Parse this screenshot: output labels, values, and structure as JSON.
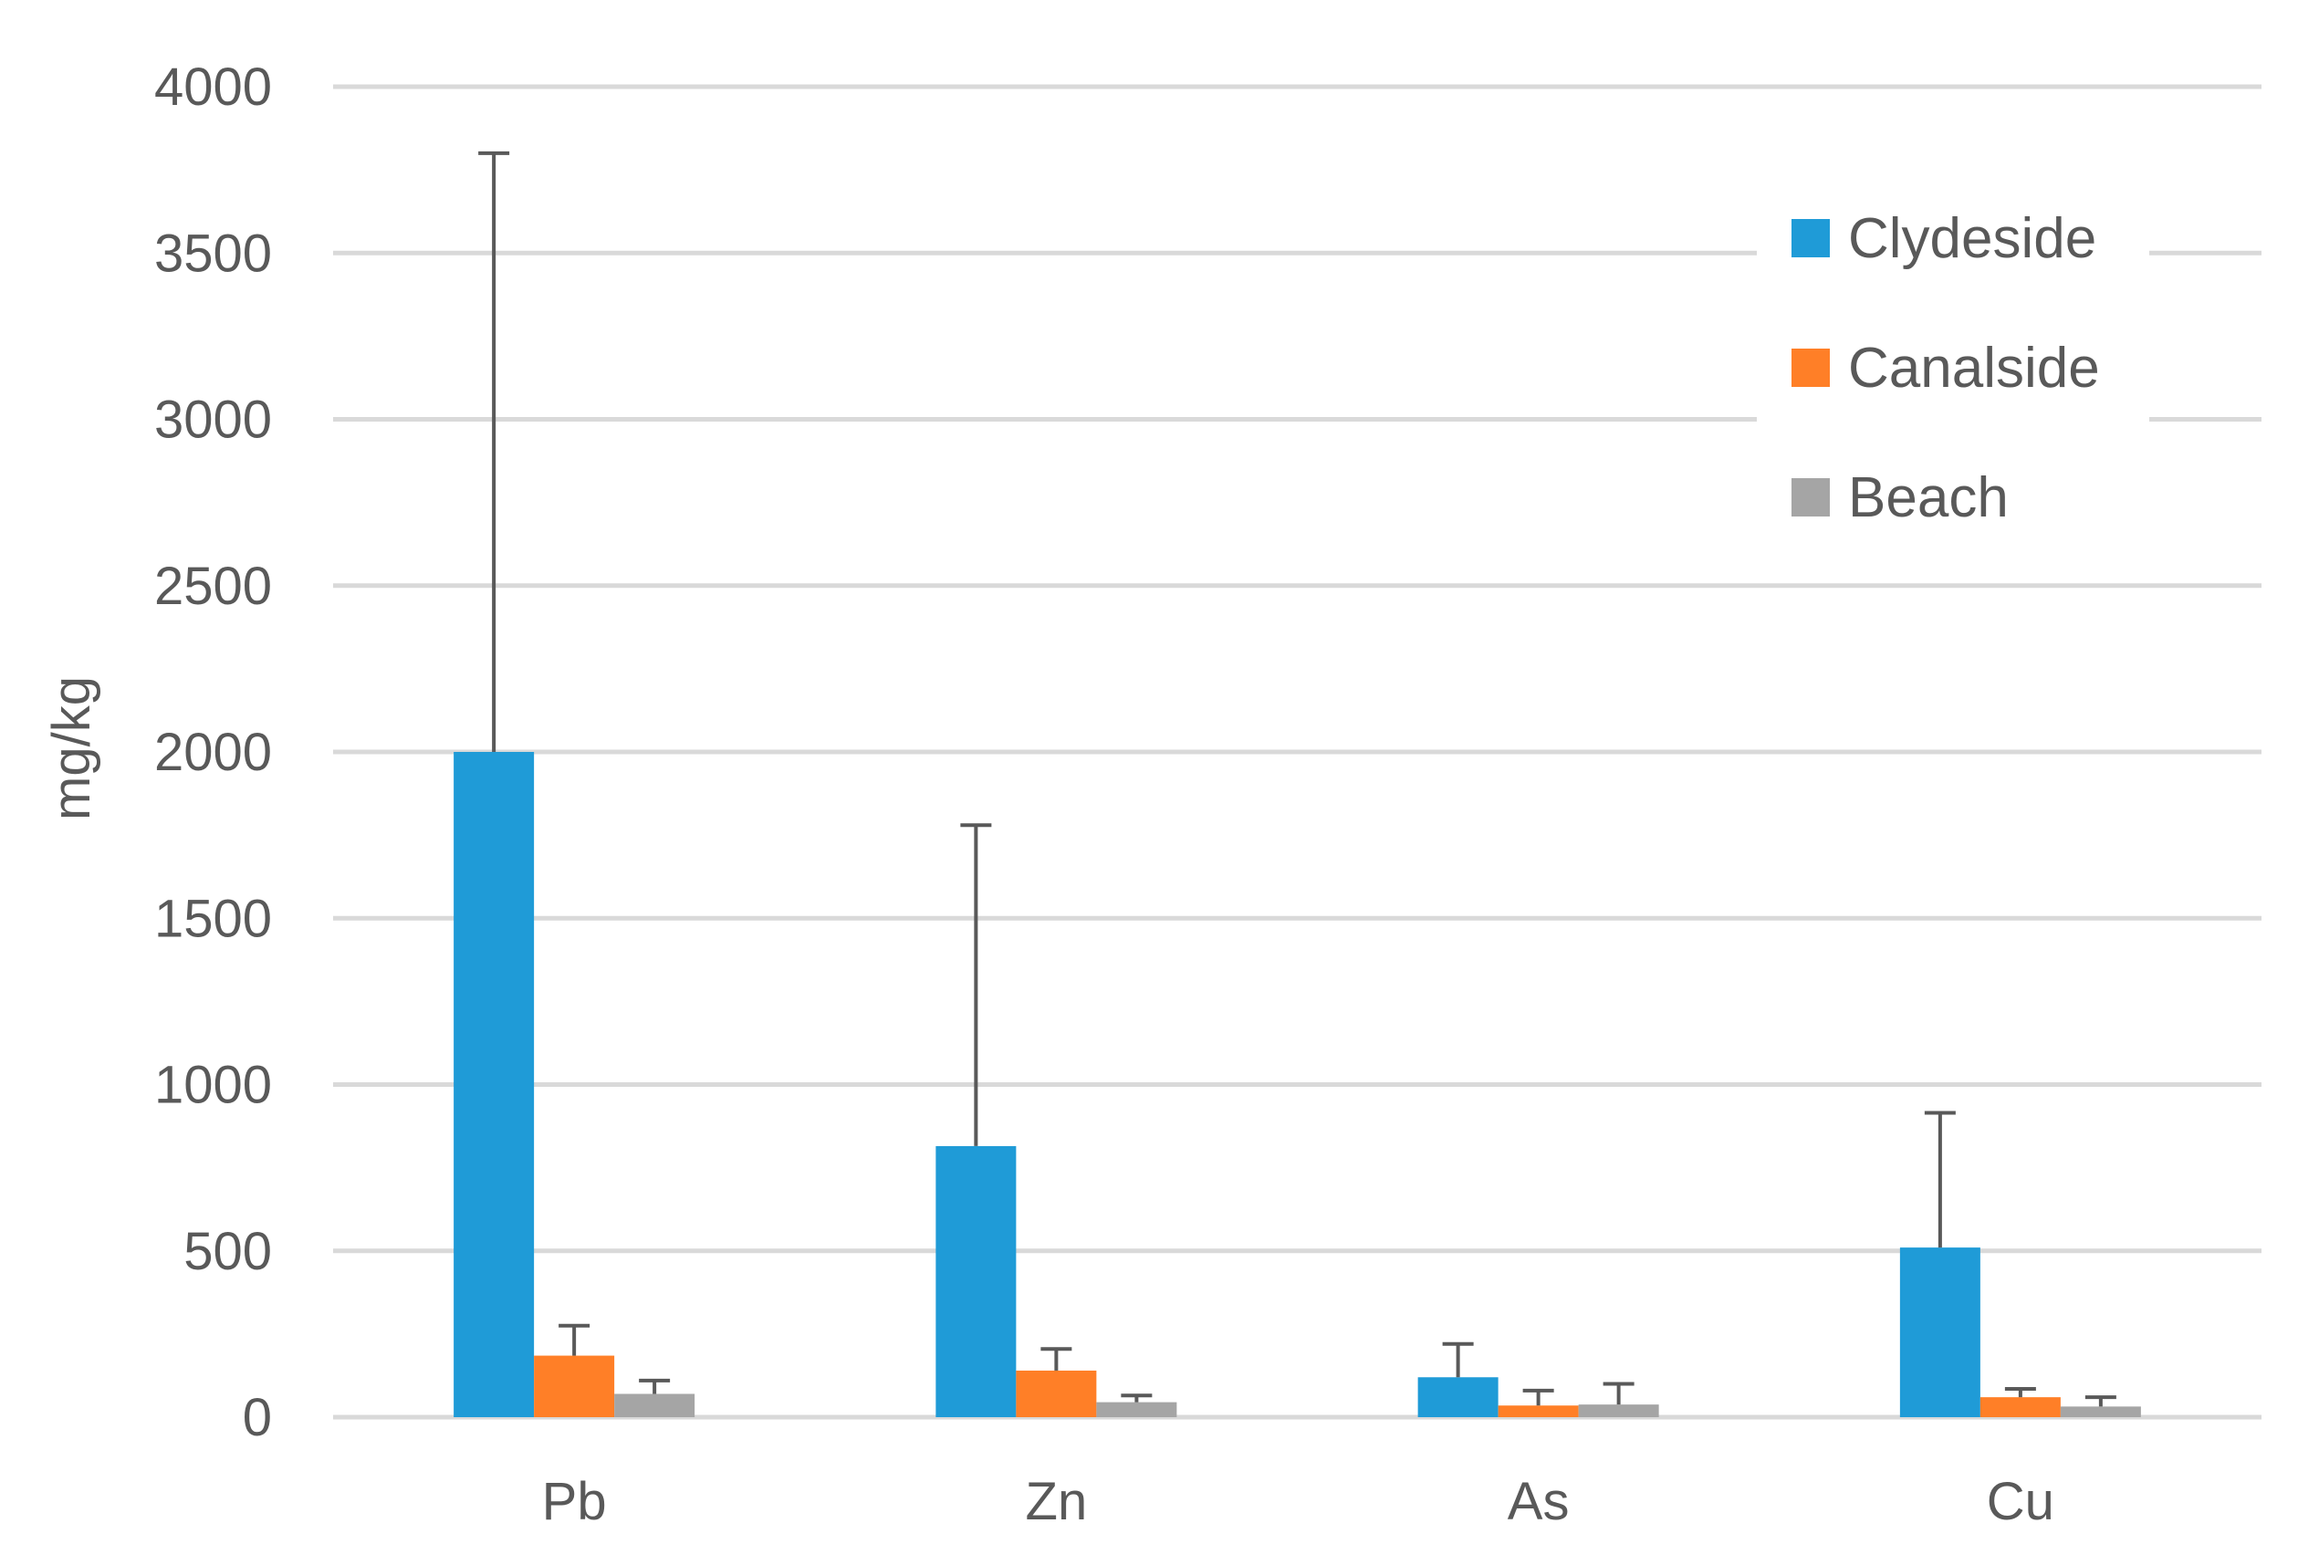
{
  "chart_data": {
    "type": "bar",
    "title": "",
    "xlabel": "",
    "ylabel": "mg/kg",
    "ylim": [
      0,
      4000
    ],
    "yticks": [
      0,
      500,
      1000,
      1500,
      2000,
      2500,
      3000,
      3500,
      4000
    ],
    "grid": true,
    "legend_position": "top-right",
    "categories": [
      "Pb",
      "Zn",
      "As",
      "Cu"
    ],
    "series": [
      {
        "name": "Clydeside",
        "color": "#1F9BD7",
        "values": [
          2000,
          815,
          120,
          510
        ],
        "error_upper": [
          1800,
          965,
          100,
          405
        ]
      },
      {
        "name": "Canalside",
        "color": "#FF7F27",
        "values": [
          185,
          140,
          35,
          60
        ],
        "error_upper": [
          90,
          65,
          45,
          25
        ]
      },
      {
        "name": "Beach",
        "color": "#A5A5A5",
        "values": [
          70,
          45,
          38,
          32
        ],
        "error_upper": [
          40,
          20,
          62,
          28
        ]
      }
    ],
    "error_bar_color": "#595959",
    "tick_label_color": "#595959",
    "grid_color": "#D9D9D9"
  }
}
